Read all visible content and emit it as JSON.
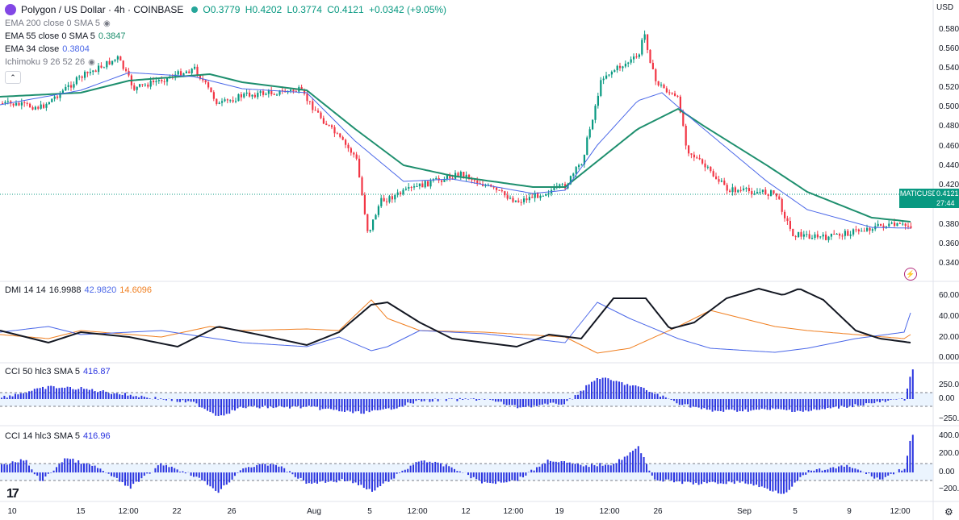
{
  "header": {
    "symbol": "Polygon / US Dollar · 4h · COINBASE",
    "open": "O0.3779",
    "high": "H0.4202",
    "low": "L0.3774",
    "close": "C0.4121",
    "change": "+0.0342 (+9.05%)"
  },
  "indicators": {
    "ema200": {
      "label": "EMA 200 close 0 SMA 5"
    },
    "ema55": {
      "label": "EMA 55 close 0 SMA 5",
      "value": "0.3847"
    },
    "ema34": {
      "label": "EMA 34 close",
      "value": "0.3804"
    },
    "ichimoku": {
      "label": "Ichimoku 9 26 52 26"
    }
  },
  "currency": "USD",
  "price_axis": [
    "0.5800",
    "0.5600",
    "0.5400",
    "0.5200",
    "0.5000",
    "0.4800",
    "0.4600",
    "0.4400",
    "0.4200",
    "0.3800",
    "0.3600",
    "0.3400"
  ],
  "price_tag": {
    "symbol": "MATICUSD",
    "countdown": "27:44",
    "value": "0.4121"
  },
  "dmi": {
    "label": "DMI 14 14",
    "adx": "16.9988",
    "plus": "42.9820",
    "minus": "14.6096",
    "axis": [
      "60.0000",
      "40.0000",
      "20.0000",
      "0.0000"
    ]
  },
  "cci50": {
    "label": "CCI 50 hlc3 SMA 5",
    "value": "416.87",
    "axis": [
      "250.00",
      "0.00",
      "−250.00"
    ]
  },
  "cci14": {
    "label": "CCI 14 hlc3 SMA 5",
    "value": "416.96",
    "axis": [
      "400.00",
      "200.00",
      "0.00",
      "−200.00"
    ]
  },
  "time_axis": [
    "10",
    "15",
    "12:00",
    "22",
    "26",
    "Aug",
    "5",
    "12:00",
    "12",
    "12:00",
    "19",
    "12:00",
    "26",
    "Sep",
    "5",
    "9",
    "12:00"
  ],
  "colors": {
    "up": "#089981",
    "down": "#f23645",
    "ema55": "#1e8f6e",
    "ema34": "#4a67e8",
    "adx": "#131722",
    "di_plus": "#4a67e8",
    "di_minus": "#f07f20",
    "cci": "#2b35e0"
  }
}
